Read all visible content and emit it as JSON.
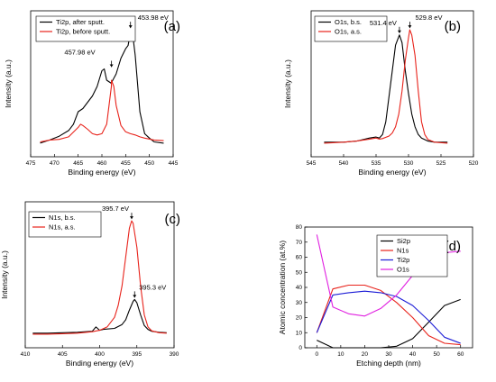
{
  "chart_data": [
    {
      "panel": "(a)",
      "type": "line",
      "xlabel": "Binding energy (eV)",
      "ylabel": "Intensity (a.u.)",
      "xlim": [
        475,
        445
      ],
      "x_ticks": [
        475,
        470,
        465,
        460,
        455,
        450,
        445
      ],
      "legend_position": "top-left",
      "series": [
        {
          "name": "Ti2p, after sputt.",
          "color": "#000000",
          "x": [
            473,
            471,
            469,
            467,
            466,
            465,
            464,
            463,
            462,
            461,
            460,
            459.5,
            459,
            458,
            457.98,
            457,
            456,
            455,
            454.5,
            454,
            453.98,
            453.5,
            453,
            452.5,
            452,
            451,
            450,
            449,
            447
          ],
          "y": [
            150,
            155,
            161,
            170,
            180,
            200,
            205,
            215,
            225,
            240,
            265,
            268,
            250,
            245,
            246,
            260,
            285,
            300,
            305,
            325,
            330,
            322,
            290,
            245,
            200,
            165,
            158,
            152,
            150
          ]
        },
        {
          "name": "Ti2p, before sputt.",
          "color": "#e8231b",
          "x": [
            473,
            471,
            469,
            467,
            465,
            464.5,
            464,
            463,
            462,
            461,
            460,
            459,
            458.5,
            458,
            457.98,
            457.5,
            457,
            456,
            455,
            454,
            453,
            452,
            451,
            449,
            447
          ],
          "y": [
            152,
            155,
            156,
            160,
            175,
            180,
            178,
            172,
            165,
            163,
            165,
            180,
            210,
            240,
            250,
            240,
            210,
            178,
            168,
            165,
            163,
            160,
            158,
            155,
            154
          ]
        }
      ],
      "annotations": [
        {
          "text": "453.98 eV",
          "x": 453.98,
          "y": 330
        },
        {
          "text": "457.98 eV",
          "x": 457.98,
          "y": 268
        }
      ]
    },
    {
      "panel": "(b)",
      "type": "line",
      "xlabel": "Binding energy (eV)",
      "ylabel": "Intensity (a.u.)",
      "xlim": [
        545,
        520
      ],
      "x_ticks": [
        545,
        540,
        535,
        530,
        525,
        520
      ],
      "legend_position": "top-left",
      "series": [
        {
          "name": "O1s, b.s.",
          "color": "#000000",
          "x": [
            543,
            540,
            538,
            536,
            535,
            534.5,
            534,
            533.5,
            533,
            532.5,
            532,
            531.4,
            531,
            530.5,
            530,
            529.5,
            529,
            528.5,
            528,
            527,
            526,
            524
          ],
          "y": [
            160,
            160,
            162,
            168,
            170,
            168,
            175,
            200,
            250,
            300,
            350,
            370,
            355,
            300,
            255,
            215,
            190,
            175,
            168,
            162,
            160,
            160
          ]
        },
        {
          "name": "O1s, a.s.",
          "color": "#e8231b",
          "x": [
            543,
            540,
            538,
            536,
            535,
            534.5,
            534,
            533,
            532.5,
            532,
            531.5,
            531,
            530.5,
            530,
            529.8,
            529.5,
            529,
            528.5,
            528,
            527.5,
            527,
            526,
            524
          ],
          "y": [
            158,
            160,
            162,
            166,
            168,
            166,
            167,
            172,
            178,
            190,
            215,
            260,
            320,
            365,
            380,
            370,
            330,
            260,
            200,
            175,
            165,
            160,
            158
          ]
        }
      ],
      "annotations": [
        {
          "text": "531.4 eV",
          "x": 531.4,
          "y": 370
        },
        {
          "text": "529.8 eV",
          "x": 529.8,
          "y": 380
        }
      ]
    },
    {
      "panel": "(c)",
      "type": "line",
      "xlabel": "Binding energy (eV)",
      "ylabel": "Intensity (a.u.)",
      "xlim": [
        410,
        390
      ],
      "x_ticks": [
        410,
        405,
        400,
        395,
        390
      ],
      "legend_position": "top-left",
      "series": [
        {
          "name": "N1s, b.s.",
          "color": "#000000",
          "x": [
            409,
            407,
            405,
            403,
            401,
            400.5,
            400,
            399.5,
            398,
            397,
            396.5,
            396,
            395.5,
            395.3,
            395,
            394.5,
            394,
            393.5,
            393,
            392,
            391
          ],
          "y": [
            152,
            152,
            153,
            154,
            156,
            165,
            158,
            160,
            162,
            170,
            180,
            200,
            218,
            222,
            215,
            190,
            168,
            160,
            156,
            154,
            153
          ]
        },
        {
          "name": "N1s, a.s.",
          "color": "#e8231b",
          "x": [
            409,
            407,
            405,
            403,
            401,
            400,
            399,
            398,
            397.5,
            397,
            396.5,
            396,
            395.7,
            395.5,
            395,
            394.5,
            394,
            393.5,
            393,
            392,
            391
          ],
          "y": [
            150,
            150,
            151,
            152,
            155,
            158,
            165,
            185,
            210,
            250,
            310,
            370,
            385,
            380,
            330,
            250,
            190,
            165,
            157,
            153,
            152
          ]
        }
      ],
      "annotations": [
        {
          "text": "395.7 eV",
          "x": 395.7,
          "y": 385
        },
        {
          "text": "395.3 eV",
          "x": 395.3,
          "y": 222
        }
      ]
    },
    {
      "panel": "(d)",
      "type": "line",
      "xlabel": "Etching depth (nm)",
      "ylabel": "Atomic concentration (at.%)",
      "xlim": [
        -5,
        65
      ],
      "ylim": [
        0,
        80
      ],
      "x_ticks": [
        0,
        10,
        20,
        30,
        40,
        50,
        60
      ],
      "y_ticks": [
        0,
        10,
        20,
        30,
        40,
        50,
        60,
        70,
        80
      ],
      "legend_position": "top-right",
      "x": [
        0,
        6.7,
        13.3,
        20,
        26.7,
        33.3,
        40,
        46.7,
        53.3,
        60
      ],
      "series": [
        {
          "name": "Si2p",
          "color": "#000000",
          "values": [
            5,
            0,
            0,
            0,
            0,
            1,
            6,
            17,
            28,
            32
          ]
        },
        {
          "name": "N1s",
          "color": "#e8231b",
          "values": [
            10,
            39,
            41.5,
            41.5,
            38,
            30,
            20,
            8,
            3,
            2
          ]
        },
        {
          "name": "Ti2p",
          "color": "#1c1cd6",
          "values": [
            10,
            35,
            36.5,
            37.5,
            36.5,
            34,
            28,
            18,
            7,
            3
          ]
        },
        {
          "name": "O1s",
          "color": "#e020e0",
          "values": [
            75,
            27,
            22.5,
            21,
            26,
            35,
            48,
            59,
            63,
            64
          ]
        }
      ]
    }
  ]
}
